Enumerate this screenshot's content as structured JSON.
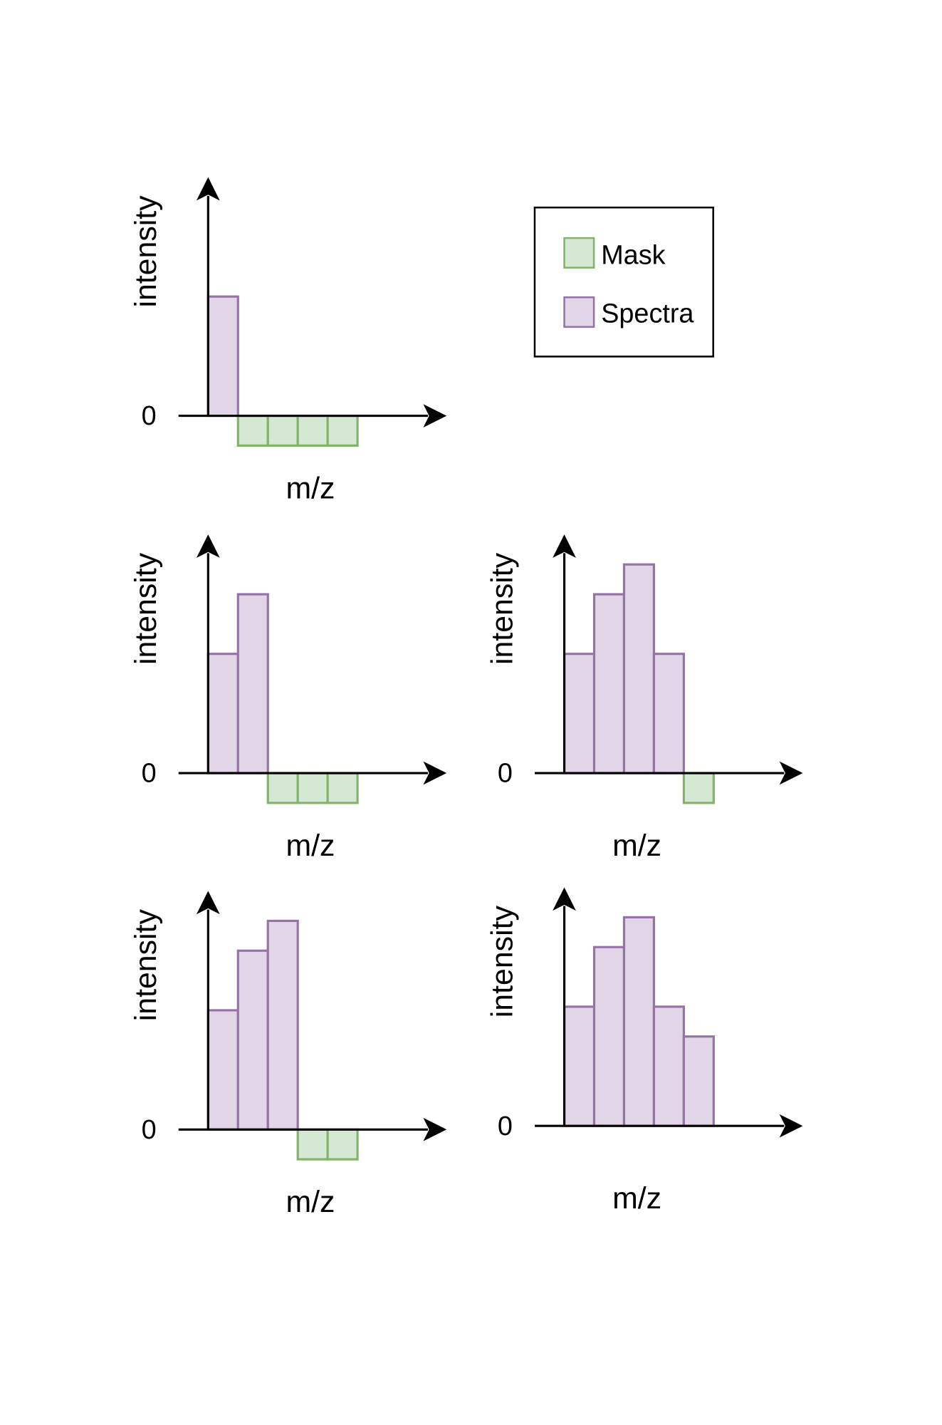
{
  "legend": {
    "items": [
      {
        "label": "Mask",
        "fill": "#d5e8d4",
        "stroke": "#82b366"
      },
      {
        "label": "Spectra",
        "fill": "#e1d5e7",
        "stroke": "#9673a6"
      }
    ]
  },
  "colors": {
    "axis": "#000000"
  },
  "chart_data": [
    {
      "type": "bar",
      "xlabel": "m/z",
      "ylabel": "intensity",
      "zero_label": "0",
      "spectra": [
        4
      ],
      "mask": [
        -1,
        -1,
        -1,
        -1
      ]
    },
    {
      "type": "bar",
      "xlabel": "m/z",
      "ylabel": "intensity",
      "zero_label": "0",
      "spectra": [
        4,
        6
      ],
      "mask": [
        -1,
        -1,
        -1
      ]
    },
    {
      "type": "bar",
      "xlabel": "m/z",
      "ylabel": "intensity",
      "zero_label": "0",
      "spectra": [
        4,
        6,
        7,
        4
      ],
      "mask": [
        -1
      ]
    },
    {
      "type": "bar",
      "xlabel": "m/z",
      "ylabel": "intensity",
      "zero_label": "0",
      "spectra": [
        4,
        6,
        7
      ],
      "mask": [
        -1,
        -1
      ]
    },
    {
      "type": "bar",
      "xlabel": "m/z",
      "ylabel": "intensity",
      "zero_label": "0",
      "spectra": [
        4,
        6,
        7,
        4,
        3
      ],
      "mask": []
    }
  ]
}
